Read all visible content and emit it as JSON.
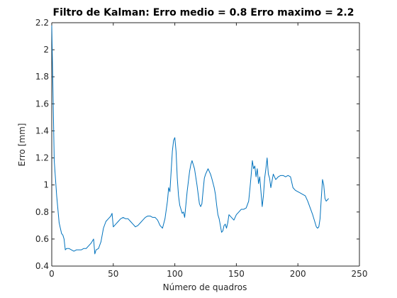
{
  "chart_data": {
    "type": "line",
    "title": "Filtro de Kalman: Erro medio = 0.8 Erro maximo = 2.2",
    "xlabel": "Número de quadros",
    "ylabel": "Erro [mm]",
    "xlim": [
      0,
      250
    ],
    "ylim": [
      0.4,
      2.2
    ],
    "xticks": [
      0,
      50,
      100,
      150,
      200,
      250
    ],
    "yticks": [
      0.4,
      0.6,
      0.8,
      1,
      1.2,
      1.4,
      1.6,
      1.8,
      2,
      2.2
    ],
    "xtick_labels": [
      "0",
      "50",
      "100",
      "150",
      "200",
      "250"
    ],
    "ytick_labels": [
      "0.4",
      "0.6",
      "0.8",
      "1",
      "1.2",
      "1.4",
      "1.6",
      "1.8",
      "2",
      "2.2"
    ],
    "grid": false,
    "line_color": "#0072bd",
    "series": [
      {
        "name": "",
        "x": [
          0,
          1,
          2,
          3,
          4,
          5,
          6,
          7,
          8,
          9,
          10,
          11,
          12,
          13,
          14,
          16,
          18,
          20,
          22,
          24,
          26,
          28,
          30,
          32,
          34,
          35,
          36,
          38,
          40,
          42,
          44,
          46,
          48,
          49,
          50,
          52,
          54,
          56,
          58,
          60,
          62,
          64,
          66,
          68,
          70,
          72,
          74,
          76,
          78,
          80,
          82,
          84,
          86,
          88,
          90,
          92,
          94,
          95,
          96,
          98,
          99,
          100,
          101,
          102,
          103,
          104,
          105,
          106,
          107,
          108,
          110,
          112,
          113,
          114,
          116,
          118,
          120,
          121,
          122,
          123,
          124,
          125,
          126,
          127,
          128,
          129,
          130,
          132,
          133,
          134,
          135,
          136,
          137,
          138,
          139,
          140,
          141,
          142,
          143,
          144,
          146,
          148,
          150,
          152,
          154,
          156,
          158,
          160,
          161,
          162,
          163,
          164,
          165,
          166,
          167,
          168,
          169,
          170,
          171,
          172,
          173,
          174,
          175,
          176,
          177,
          178,
          180,
          182,
          184,
          186,
          188,
          190,
          192,
          194,
          196,
          198,
          200,
          202,
          204,
          206,
          208,
          210,
          212,
          214,
          215,
          216,
          217,
          218,
          219,
          220,
          221,
          222,
          223,
          224,
          225
        ],
        "y": [
          2.18,
          1.7,
          1.18,
          1.05,
          0.92,
          0.82,
          0.72,
          0.68,
          0.64,
          0.63,
          0.6,
          0.52,
          0.53,
          0.53,
          0.53,
          0.52,
          0.51,
          0.52,
          0.52,
          0.52,
          0.53,
          0.53,
          0.55,
          0.57,
          0.6,
          0.49,
          0.52,
          0.53,
          0.58,
          0.68,
          0.73,
          0.75,
          0.77,
          0.79,
          0.69,
          0.71,
          0.73,
          0.75,
          0.76,
          0.75,
          0.75,
          0.73,
          0.71,
          0.69,
          0.7,
          0.72,
          0.74,
          0.76,
          0.77,
          0.77,
          0.76,
          0.76,
          0.74,
          0.7,
          0.68,
          0.75,
          0.88,
          0.98,
          0.95,
          1.25,
          1.33,
          1.35,
          1.25,
          1.05,
          0.92,
          0.85,
          0.82,
          0.79,
          0.8,
          0.76,
          0.95,
          1.1,
          1.15,
          1.18,
          1.12,
          1.0,
          0.86,
          0.84,
          0.86,
          0.96,
          1.05,
          1.08,
          1.1,
          1.12,
          1.1,
          1.08,
          1.05,
          0.98,
          0.93,
          0.85,
          0.78,
          0.75,
          0.7,
          0.65,
          0.66,
          0.7,
          0.71,
          0.68,
          0.72,
          0.78,
          0.76,
          0.74,
          0.78,
          0.8,
          0.82,
          0.82,
          0.83,
          0.88,
          0.97,
          1.07,
          1.18,
          1.12,
          1.14,
          1.06,
          1.12,
          1.01,
          1.06,
          0.95,
          0.84,
          0.92,
          1.05,
          1.12,
          1.2,
          1.08,
          1.05,
          0.98,
          1.08,
          1.04,
          1.06,
          1.07,
          1.07,
          1.06,
          1.07,
          1.06,
          0.98,
          0.96,
          0.95,
          0.94,
          0.93,
          0.92,
          0.88,
          0.83,
          0.78,
          0.72,
          0.69,
          0.68,
          0.69,
          0.75,
          0.9,
          1.04,
          1.0,
          0.9,
          0.88,
          0.89,
          0.9
        ]
      }
    ]
  }
}
